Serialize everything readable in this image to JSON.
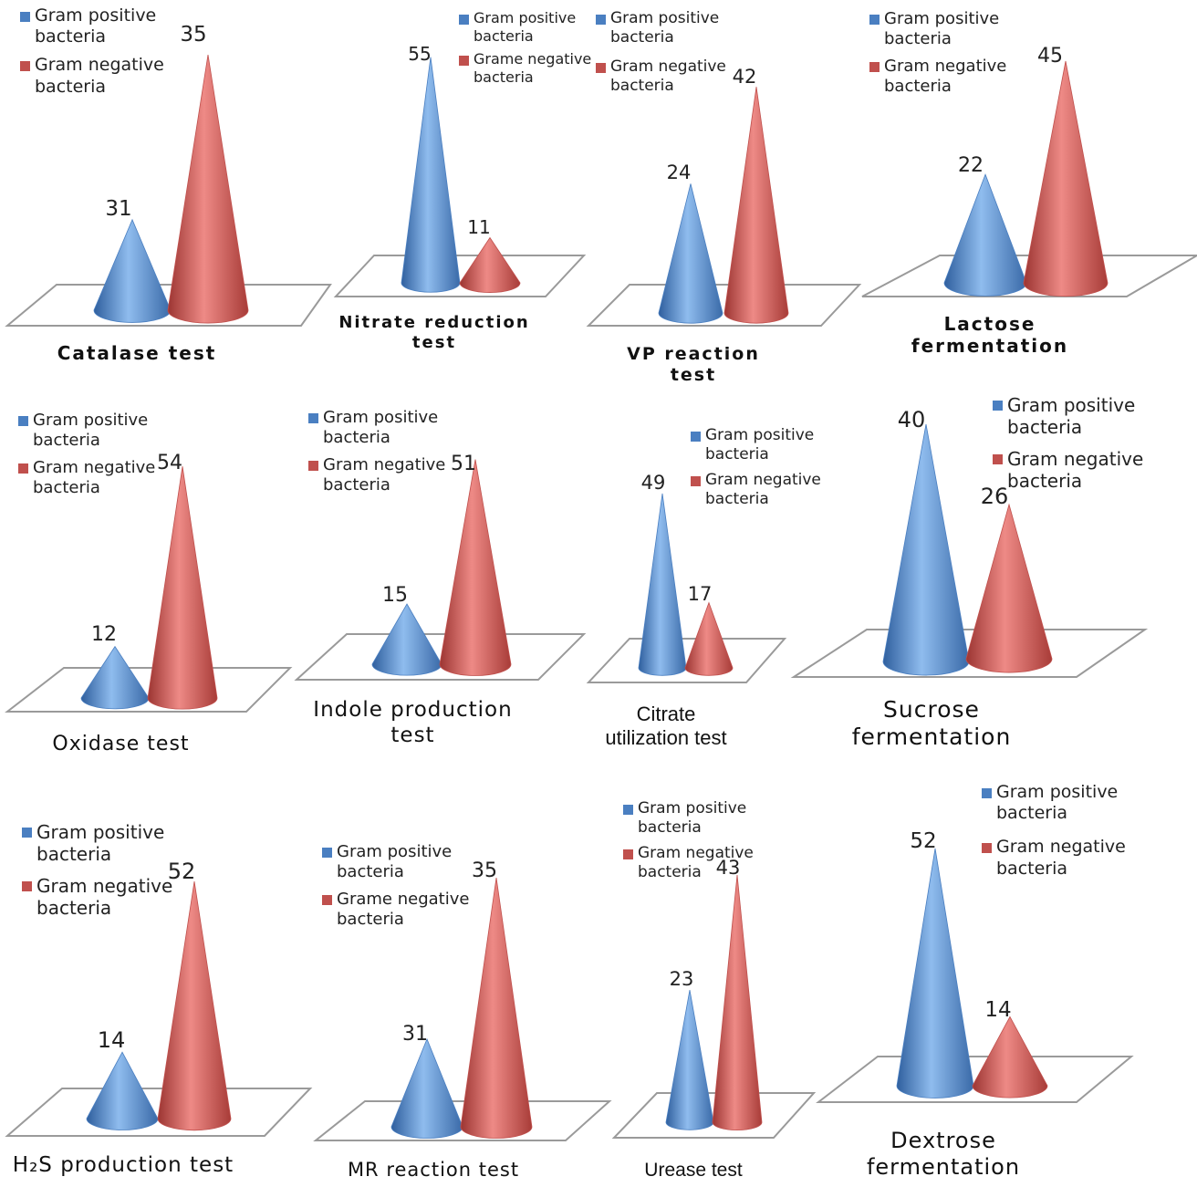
{
  "colors": {
    "gram_positive": "#4a7fc1",
    "gram_negative": "#c0504d"
  },
  "chart_data": [
    {
      "type": "bar",
      "title": "Catalase test",
      "categories": [
        "Gram positive bacteria",
        "Gram negative bacteria"
      ],
      "values": [
        31,
        35
      ],
      "legend": [
        "Gram positive bacteria",
        "Gram negative bacteria"
      ]
    },
    {
      "type": "bar",
      "title": "Nitrate reduction test",
      "categories": [
        "Gram positive bacteria",
        "Grame negative bacteria"
      ],
      "values": [
        55,
        11
      ],
      "legend": [
        "Gram positive bacteria",
        "Grame negative bacteria"
      ]
    },
    {
      "type": "bar",
      "title": "VP reaction test",
      "categories": [
        "Gram positive bacteria",
        "Gram negative bacteria"
      ],
      "values": [
        24,
        42
      ],
      "legend": [
        "Gram positive bacteria",
        "Gram negative bacteria"
      ]
    },
    {
      "type": "bar",
      "title": "Lactose fermentation",
      "categories": [
        "Gram positive bacteria",
        "Gram negative bacteria"
      ],
      "values": [
        22,
        45
      ],
      "legend": [
        "Gram positive bacteria",
        "Gram negative bacteria"
      ]
    },
    {
      "type": "bar",
      "title": "Oxidase test",
      "categories": [
        "Gram positive bacteria",
        "Gram negative bacteria"
      ],
      "values": [
        12,
        54
      ],
      "legend": [
        "Gram positive bacteria",
        "Gram negative bacteria"
      ]
    },
    {
      "type": "bar",
      "title": "Indole production test",
      "categories": [
        "Gram positive bacteria",
        "Gram negative bacteria"
      ],
      "values": [
        15,
        51
      ],
      "legend": [
        "Gram positive bacteria",
        "Gram negative bacteria"
      ]
    },
    {
      "type": "bar",
      "title": "Citrate utilization test",
      "categories": [
        "Gram positive bacteria",
        "Gram negative bacteria"
      ],
      "values": [
        49,
        17
      ],
      "legend": [
        "Gram positive bacteria",
        "Gram negative bacteria"
      ]
    },
    {
      "type": "bar",
      "title": "Sucrose fermentation",
      "categories": [
        "Gram positive bacteria",
        "Gram negative bacteria"
      ],
      "values": [
        40,
        26
      ],
      "legend": [
        "Gram positive bacteria",
        "Gram negative bacteria"
      ]
    },
    {
      "type": "bar",
      "title": "H₂S production test",
      "categories": [
        "Gram positive bacteria",
        "Gram negative bacteria"
      ],
      "values": [
        14,
        52
      ],
      "legend": [
        "Gram positive bacteria",
        "Gram negative bacteria"
      ]
    },
    {
      "type": "bar",
      "title": "MR reaction test",
      "categories": [
        "Gram positive bacteria",
        "Grame negative bacteria"
      ],
      "values": [
        31,
        35
      ],
      "legend": [
        "Gram positive bacteria",
        "Grame negative bacteria"
      ]
    },
    {
      "type": "bar",
      "title": "Urease test",
      "categories": [
        "Gram positive bacteria",
        "Gram negative bacteria"
      ],
      "values": [
        23,
        43
      ],
      "legend": [
        "Gram positive bacteria",
        "Gram negative bacteria"
      ]
    },
    {
      "type": "bar",
      "title": "Dextrose fermentation",
      "categories": [
        "Gram positive bacteria",
        "Gram negative bacteria"
      ],
      "values": [
        52,
        14
      ],
      "legend": [
        "Gram positive bacteria",
        "Gram negative bacteria"
      ]
    }
  ]
}
